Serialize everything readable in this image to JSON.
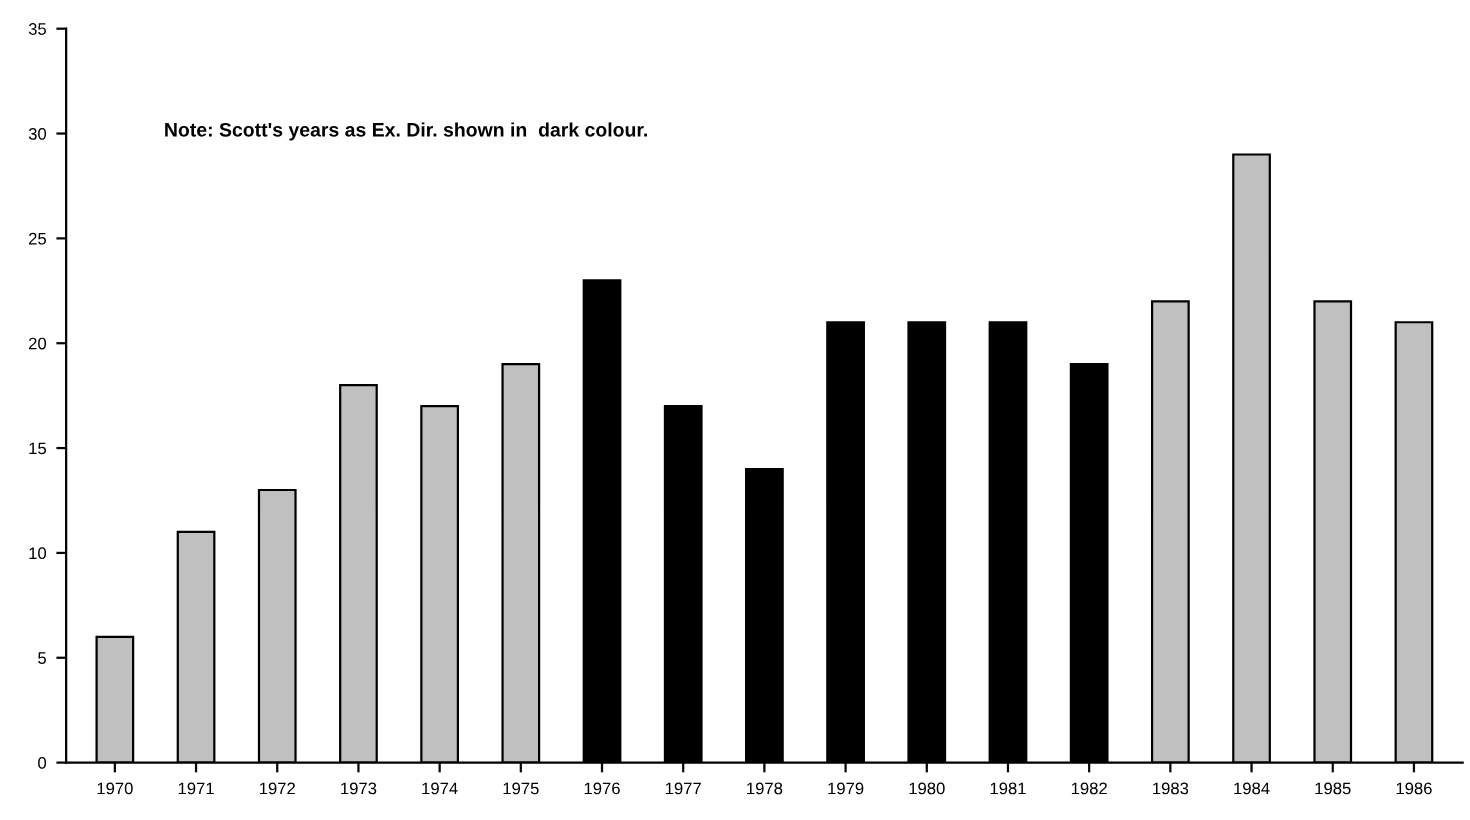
{
  "chart_data": {
    "type": "bar",
    "categories": [
      "1970",
      "1971",
      "1972",
      "1973",
      "1974",
      "1975",
      "1976",
      "1977",
      "1978",
      "1979",
      "1980",
      "1981",
      "1982",
      "1983",
      "1984",
      "1985",
      "1986"
    ],
    "values": [
      6,
      11,
      13,
      18,
      17,
      19,
      23,
      17,
      14,
      21,
      21,
      21,
      19,
      22,
      29,
      22,
      21
    ],
    "colors": [
      "#c0c0c0",
      "#c0c0c0",
      "#c0c0c0",
      "#c0c0c0",
      "#c0c0c0",
      "#c0c0c0",
      "#000000",
      "#000000",
      "#000000",
      "#000000",
      "#000000",
      "#000000",
      "#000000",
      "#c0c0c0",
      "#c0c0c0",
      "#c0c0c0",
      "#c0c0c0"
    ],
    "ylim": [
      0,
      35
    ],
    "yticks": [
      0,
      5,
      10,
      15,
      20,
      25,
      30,
      35
    ],
    "grid": false,
    "legend": false,
    "annotations": [
      "Note: Scott's years as Ex. Dir. shown in  dark colour."
    ]
  }
}
